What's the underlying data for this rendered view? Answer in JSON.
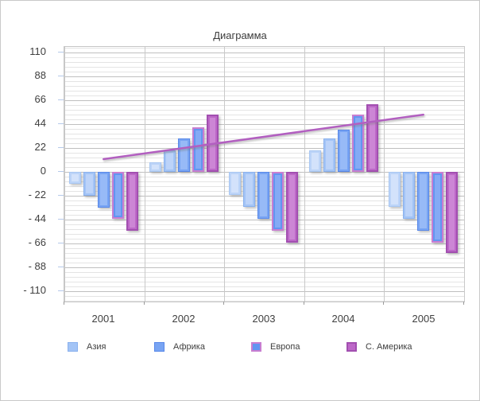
{
  "title": "Диаграмма",
  "y_axis": {
    "tick_labels": [
      "110",
      "88",
      "66",
      "44",
      "22",
      "0",
      "- 22",
      "- 44",
      "- 66",
      "- 88",
      "- 110"
    ],
    "tick_values": [
      110,
      88,
      66,
      44,
      22,
      0,
      -22,
      -44,
      -66,
      -88,
      -110
    ],
    "major_unit": 22,
    "minor_unit": 4.4
  },
  "x_axis": {
    "categories": [
      "2001",
      "2002",
      "2003",
      "2004",
      "2005"
    ]
  },
  "legend": {
    "items": [
      {
        "label": "Азия",
        "fill": "#a3c4f6",
        "border": "#8ab1ee"
      },
      {
        "label": "Африка",
        "fill": "#78a4f3",
        "border": "#5888e9"
      },
      {
        "label": "Европа",
        "fill": "#6295f1",
        "border": "#c87ed1"
      },
      {
        "label": "С. Америка",
        "fill": "#bd68c8",
        "border": "#a24fb0"
      }
    ]
  },
  "series_colors": [
    {
      "fill": "#bcd4f8",
      "border": "#a9c7f2",
      "inner": "#d3e2fb",
      "border_width": 1
    },
    {
      "fill": "#a3c4f6",
      "border": "#8ab1ee",
      "inner": "#bcd3f9",
      "border_width": 1
    },
    {
      "fill": "#78a4f3",
      "border": "#5888e9",
      "inner": "#97baf7",
      "border_width": 1
    },
    {
      "fill": "#6295f1",
      "border": "#c87ed1",
      "inner": "#84aaf5",
      "border_width": 2
    },
    {
      "fill": "#bd68c8",
      "border": "#a24fb0",
      "inner": "#cc86d5",
      "border_width": 2
    }
  ],
  "colors": {
    "trendline": "#b25fc0",
    "grid_major": "#bfbfbf",
    "grid_minor": "#e4e4e4",
    "grid_vertical": "#c9c9c9",
    "axis_text": "#3f3f3f",
    "plot_border": "#c6c6c6",
    "frame_border": "#c9c9c9"
  },
  "chart_data": {
    "type": "bar",
    "title": "Диаграмма",
    "categories": [
      "2001",
      "2002",
      "2003",
      "2004",
      "2005"
    ],
    "series": [
      {
        "name": "",
        "values": [
          -11,
          9,
          -21,
          20,
          -32
        ]
      },
      {
        "name": "Азия",
        "values": [
          -22,
          20,
          -32,
          31,
          -43
        ]
      },
      {
        "name": "Африка",
        "values": [
          -33,
          31,
          -43,
          39,
          -54
        ]
      },
      {
        "name": "Европа",
        "values": [
          -43,
          41,
          -54,
          53,
          -65
        ]
      },
      {
        "name": "С. Америка",
        "values": [
          -54,
          53,
          -65,
          62,
          -75
        ]
      }
    ],
    "trendline": {
      "shape": "linear",
      "start_value": 11,
      "end_value": 52
    },
    "xlabel": "",
    "ylabel": "",
    "ylim": [
      -110,
      110
    ],
    "grid": true,
    "legend_position": "bottom"
  }
}
